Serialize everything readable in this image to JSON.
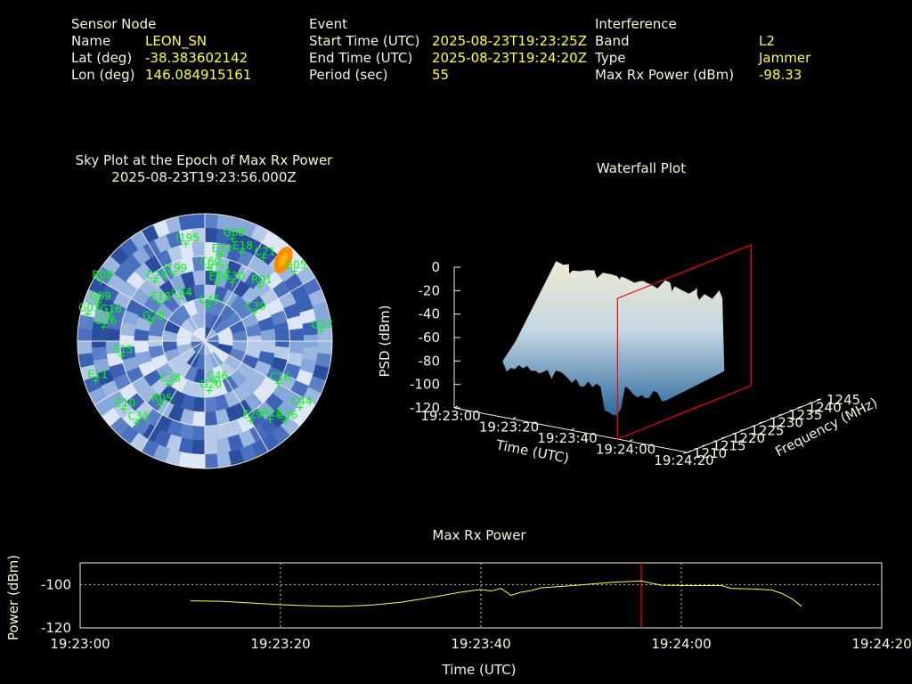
{
  "header": {
    "sensor": {
      "title": "Sensor Node",
      "rows": [
        {
          "label": "Name",
          "value": "LEON_SN"
        },
        {
          "label": "Lat (deg)",
          "value": "-38.383602142"
        },
        {
          "label": "Lon (deg)",
          "value": "146.084915161"
        }
      ]
    },
    "event": {
      "title": "Event",
      "rows": [
        {
          "label": "Start Time (UTC)",
          "value": "2025-08-23T19:23:25Z"
        },
        {
          "label": "End Time (UTC)",
          "value": "2025-08-23T19:24:20Z"
        },
        {
          "label": "Period (sec)",
          "value": "55"
        }
      ]
    },
    "interference": {
      "title": "Interference",
      "rows": [
        {
          "label": "Band",
          "value": "L2"
        },
        {
          "label": "Type",
          "value": "Jammer"
        },
        {
          "label": "Max Rx Power (dBm)",
          "value": "-98.33"
        }
      ]
    }
  },
  "colors": {
    "label": "#f5f5dc",
    "value": "#ffff33",
    "satellite": "#00ff00",
    "marker": "#ff0000",
    "series": "#ffff33"
  },
  "chart_data": [
    {
      "type": "sky_plot",
      "title": "Sky Plot at the Epoch of Max Rx Power",
      "subtitle": "2025-08-23T19:23:56.000Z",
      "satellites": [
        {
          "id": "I195",
          "az": 349,
          "el": 20
        },
        {
          "id": "G08",
          "az": 15,
          "el": 15
        },
        {
          "id": "E18",
          "az": 22,
          "el": 22
        },
        {
          "id": "E33",
          "az": 10,
          "el": 28
        },
        {
          "id": "C21",
          "az": 35,
          "el": 18
        },
        {
          "id": "G05",
          "az": 52,
          "el": 10
        },
        {
          "id": "R01",
          "az": 45,
          "el": 35
        },
        {
          "id": "C60",
          "az": 3,
          "el": 38
        },
        {
          "id": "C21",
          "az": 12,
          "el": 42
        },
        {
          "id": "E14",
          "az": 12,
          "el": 48
        },
        {
          "id": "C30",
          "az": 25,
          "el": 44
        },
        {
          "id": "I199",
          "az": 335,
          "el": 38
        },
        {
          "id": "C24",
          "az": 320,
          "el": 35
        },
        {
          "id": "R08",
          "az": 300,
          "el": 5
        },
        {
          "id": "G09",
          "az": 290,
          "el": 10
        },
        {
          "id": "G16",
          "az": 285,
          "el": 20
        },
        {
          "id": "G03",
          "az": 283,
          "el": 5
        },
        {
          "id": "G26",
          "az": 278,
          "el": 18
        },
        {
          "id": "E18",
          "az": 310,
          "el": 48
        },
        {
          "id": "C44",
          "az": 330,
          "el": 55
        },
        {
          "id": "C45",
          "az": 5,
          "el": 65
        },
        {
          "id": "G28",
          "az": 290,
          "el": 50
        },
        {
          "id": "E15",
          "az": 260,
          "el": 30
        },
        {
          "id": "C39",
          "az": 60,
          "el": 50
        },
        {
          "id": "G27",
          "az": 85,
          "el": 8
        },
        {
          "id": "E11",
          "az": 250,
          "el": 8
        },
        {
          "id": "C38",
          "az": 220,
          "el": 50
        },
        {
          "id": "R05",
          "az": 215,
          "el": 35
        },
        {
          "id": "E10",
          "az": 230,
          "el": 15
        },
        {
          "id": "C34",
          "az": 220,
          "el": 15
        },
        {
          "id": "G20",
          "az": 175,
          "el": 55
        },
        {
          "id": "C46",
          "az": 165,
          "el": 60
        },
        {
          "id": "C16",
          "az": 120,
          "el": 30
        },
        {
          "id": "E29",
          "az": 150,
          "el": 25
        },
        {
          "id": "R11",
          "az": 140,
          "el": 18
        },
        {
          "id": "G36",
          "az": 135,
          "el": 10
        },
        {
          "id": "C44",
          "az": 125,
          "el": 8
        }
      ]
    },
    {
      "type": "surface3d",
      "title": "Waterfall Plot",
      "xlabel": "Time (UTC)",
      "ylabel": "Frequency (MHz)",
      "zlabel": "PSD (dBm)",
      "x_ticks": [
        "19:23:00",
        "19:23:20",
        "19:23:40",
        "19:24:00",
        "19:24:20"
      ],
      "y_ticks": [
        1210,
        1215,
        1220,
        1225,
        1230,
        1235,
        1240,
        1245
      ],
      "z_ticks": [
        0,
        -20,
        -40,
        -60,
        -80,
        -100,
        -120
      ],
      "zlim": [
        -120,
        0
      ],
      "xlim": [
        "19:23:00",
        "19:24:20"
      ],
      "ylim": [
        1210,
        1245
      ],
      "marker_time": "19:23:56"
    },
    {
      "type": "line",
      "title": "Max Rx Power",
      "xlabel": "Time (UTC)",
      "ylabel": "Power (dBm)",
      "xlim": [
        0,
        80
      ],
      "ylim": [
        -120,
        -90
      ],
      "x_tick_values": [
        0,
        20,
        40,
        60,
        80
      ],
      "x_ticks": [
        "19:23:00",
        "19:23:20",
        "19:23:40",
        "19:24:00",
        "19:24:20"
      ],
      "y_ticks": [
        -100,
        -120
      ],
      "grid": true,
      "marker_time": 56,
      "series": [
        {
          "x": [
            11,
            14,
            17,
            20,
            23,
            26,
            29,
            32,
            35,
            38,
            40,
            41,
            42,
            43,
            44,
            45,
            46,
            47,
            50,
            53,
            56,
            58,
            61,
            64,
            65,
            67,
            69,
            70,
            71,
            72
          ],
          "y": [
            -107.5,
            -107.7,
            -108.5,
            -109.3,
            -109.8,
            -110,
            -109.5,
            -108.2,
            -106,
            -103.5,
            -102.3,
            -103,
            -101.8,
            -105,
            -103.5,
            -102.8,
            -101.5,
            -101.2,
            -100.2,
            -99,
            -98.33,
            -100.3,
            -100.5,
            -100.5,
            -101.8,
            -102,
            -102.5,
            -104,
            -106.5,
            -110
          ]
        }
      ]
    }
  ]
}
